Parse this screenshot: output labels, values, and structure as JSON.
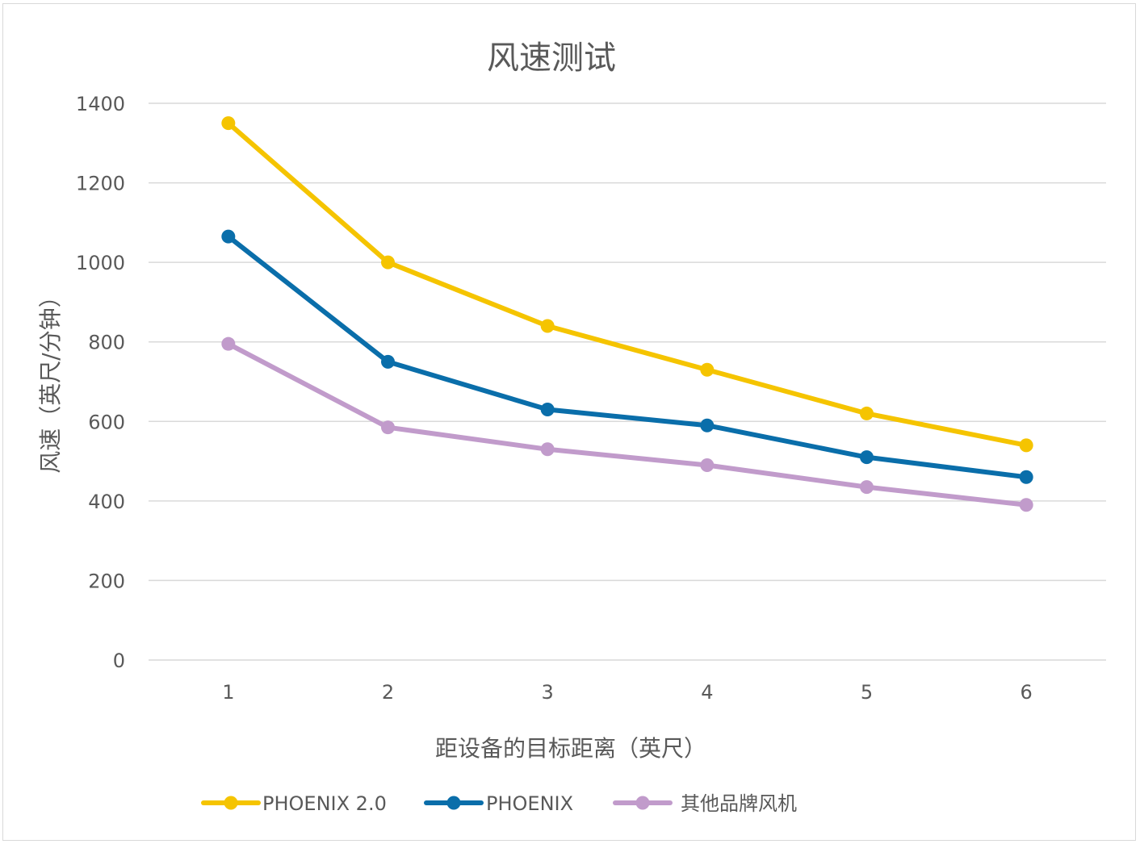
{
  "chart_data": {
    "type": "line",
    "title": "风速测试",
    "xlabel": "距设备的目标距离（英尺）",
    "ylabel": "风速（英尺/分钟）",
    "categories": [
      "1",
      "2",
      "3",
      "4",
      "5",
      "6"
    ],
    "ylim": [
      0,
      1400
    ],
    "yticks": [
      "0",
      "200",
      "400",
      "600",
      "800",
      "1000",
      "1200",
      "1400"
    ],
    "grid": true,
    "legend_position": "bottom",
    "series": [
      {
        "name": "PHOENIX 2.0",
        "color": "#F5C400",
        "values": [
          1350,
          1000,
          840,
          730,
          620,
          540
        ]
      },
      {
        "name": "PHOENIX",
        "color": "#0A6EAA",
        "values": [
          1065,
          750,
          630,
          590,
          510,
          460
        ]
      },
      {
        "name": "其他品牌风机",
        "color": "#C19BCB",
        "values": [
          795,
          585,
          530,
          490,
          435,
          390
        ]
      }
    ]
  }
}
